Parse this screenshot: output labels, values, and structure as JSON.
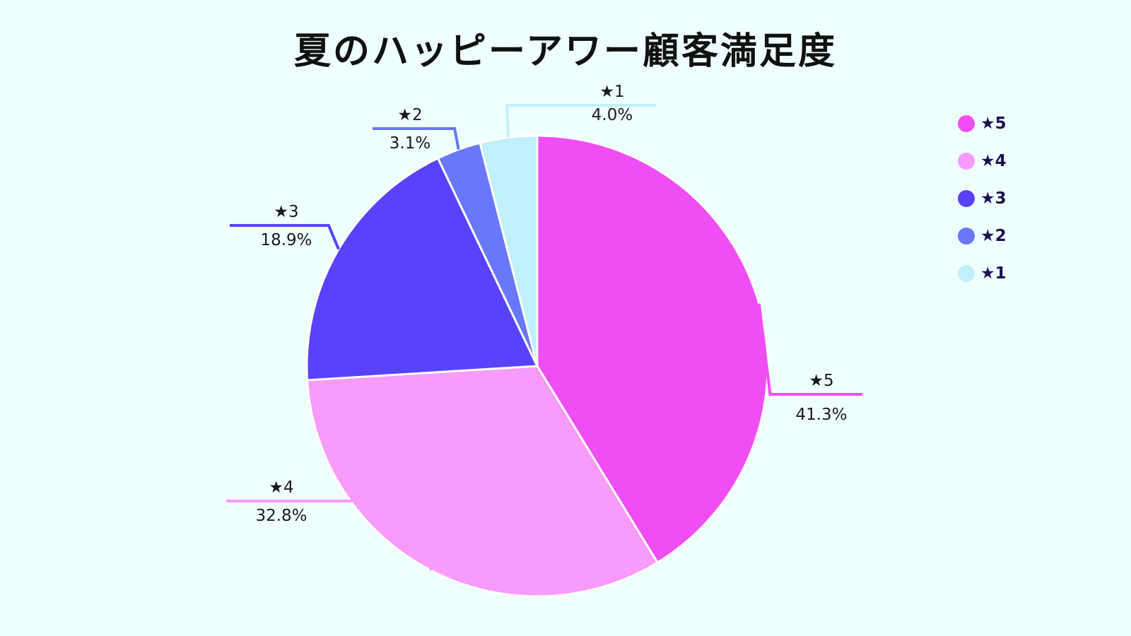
{
  "title": "夏のハッピーアワー顧客満足度",
  "chart_data": {
    "type": "pie",
    "title": "夏のハッピーアワー顧客満足度",
    "legend_position": "top-right",
    "start_angle_deg": 0,
    "direction": "clockwise",
    "slices": [
      {
        "label": "★5",
        "value": 41.3,
        "display": "41.3%",
        "color": "#ef4ef5"
      },
      {
        "label": "★4",
        "value": 32.8,
        "display": "32.8%",
        "color": "#f99afd"
      },
      {
        "label": "★3",
        "value": 18.9,
        "display": "18.9%",
        "color": "#5843fd"
      },
      {
        "label": "★2",
        "value": 3.1,
        "display": "3.1%",
        "color": "#6878f8"
      },
      {
        "label": "★1",
        "value": 4.0,
        "display": "4.0%",
        "color": "#c0f0fb"
      }
    ]
  }
}
